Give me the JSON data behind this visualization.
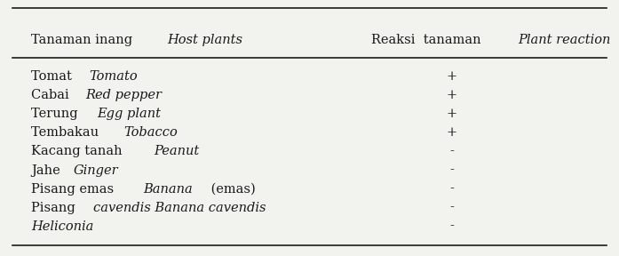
{
  "header_col1_normal": "Tanaman inang ",
  "header_col1_italic": "Host plants",
  "header_col2_normal": "Reaksi  tanaman ",
  "header_col2_italic": "Plant reaction",
  "rows": [
    {
      "parts": [
        [
          "Tomat ",
          false
        ],
        [
          "Tomato",
          true
        ]
      ],
      "reaction": "+"
    },
    {
      "parts": [
        [
          "Cabai ",
          false
        ],
        [
          "Red pepper",
          true
        ]
      ],
      "reaction": "+"
    },
    {
      "parts": [
        [
          "Terung ",
          false
        ],
        [
          "Egg plant",
          true
        ]
      ],
      "reaction": "+"
    },
    {
      "parts": [
        [
          "Tembakau ",
          false
        ],
        [
          "Tobacco",
          true
        ]
      ],
      "reaction": "+"
    },
    {
      "parts": [
        [
          "Kacang tanah ",
          false
        ],
        [
          "Peanut",
          true
        ]
      ],
      "reaction": "-"
    },
    {
      "parts": [
        [
          "Jahe ",
          false
        ],
        [
          "Ginger",
          true
        ]
      ],
      "reaction": "-"
    },
    {
      "parts": [
        [
          "Pisang emas ",
          false
        ],
        [
          "Banana",
          true
        ],
        [
          " (emas)",
          false
        ]
      ],
      "reaction": "-"
    },
    {
      "parts": [
        [
          "Pisang ",
          false
        ],
        [
          "cavendis Banana cavendis",
          true
        ]
      ],
      "reaction": "-"
    },
    {
      "parts": [
        [
          "Heliconia",
          true
        ]
      ],
      "reaction": "-"
    }
  ],
  "bg_color": "#f2f2ee",
  "text_color": "#1a1a1a",
  "font_size": 10.5,
  "header_font_size": 10.5,
  "fig_width": 6.97,
  "fig_height": 2.88,
  "dpi": 100
}
